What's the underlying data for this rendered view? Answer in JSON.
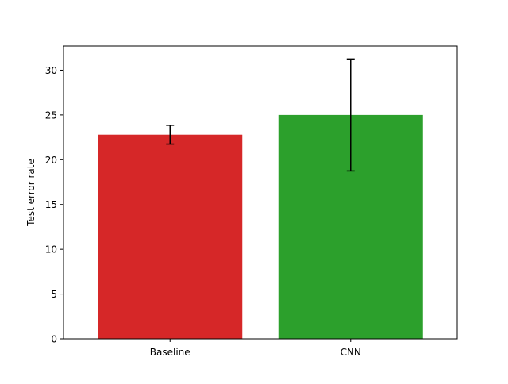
{
  "chart_data": {
    "type": "bar",
    "title": "",
    "xlabel": "",
    "ylabel": "Test error rate",
    "categories": [
      "Baseline",
      "CNN"
    ],
    "values": [
      22.8,
      25.0
    ],
    "errors": [
      1.05,
      6.25
    ],
    "colors": [
      "#d62728",
      "#2ca02c"
    ],
    "ylim": [
      0,
      32.7
    ],
    "yticks": [
      0,
      5,
      10,
      15,
      20,
      25,
      30
    ],
    "grid": false,
    "legend": "none"
  }
}
